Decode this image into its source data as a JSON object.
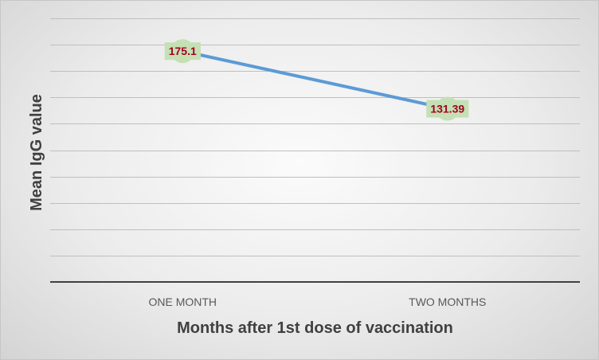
{
  "colors": {
    "line": "#5b9bd5",
    "marker": "#c5e0b4",
    "label_bg": "#c5e0b4",
    "label_text": "#a50021",
    "grid": "#bfbfbf",
    "axis": "#404040"
  },
  "chart_data": {
    "type": "line",
    "categories": [
      "ONE MONTH",
      "TWO MONTHS"
    ],
    "values": [
      175.1,
      131.39
    ],
    "data_labels": [
      "175.1",
      "131.39"
    ],
    "title": "",
    "xlabel": "Months after 1st dose of vaccination",
    "ylabel": "Mean IgG value",
    "ylim": [
      0,
      200
    ],
    "y_tick_step": 20,
    "y_tick_labels_shown": false,
    "grid": true,
    "legend": "none"
  }
}
